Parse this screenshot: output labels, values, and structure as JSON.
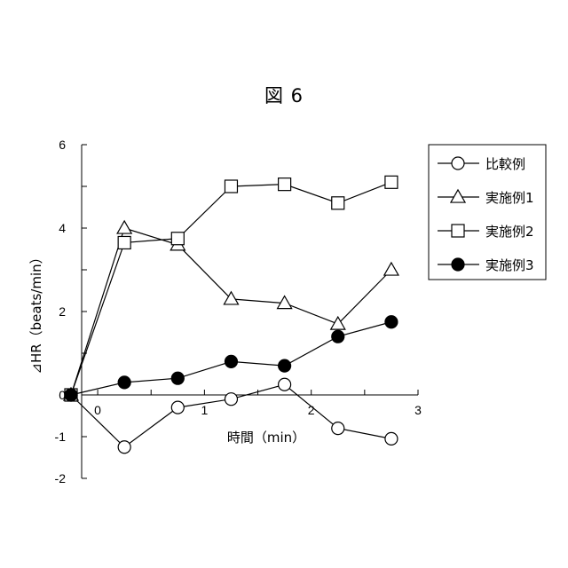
{
  "figure": {
    "title": "図 6"
  },
  "chart_data": {
    "type": "line",
    "xlabel": "時間（min）",
    "ylabel": "⊿HR（beats/min）",
    "xlim": [
      -0.25,
      3
    ],
    "ylim": [
      -2,
      6
    ],
    "x_ticks": [
      0,
      1,
      2,
      3
    ],
    "y_ticks": [
      -2,
      -1,
      0,
      2,
      4,
      6
    ],
    "y_minor_ticks": [
      1,
      3,
      5
    ],
    "x_minor_ticks": [
      0.5,
      1.5,
      2.5
    ],
    "x": [
      0,
      0.5,
      1,
      1.5,
      2,
      2.5,
      3
    ],
    "x_plot": [
      -0.25,
      0.25,
      0.75,
      1.25,
      1.75,
      2.25,
      2.75
    ],
    "grid": false,
    "legend_position": "top-right",
    "series": [
      {
        "name": "比較例",
        "marker": "circle-open",
        "values": [
          0,
          -1.25,
          -0.3,
          -0.1,
          0.25,
          -0.8,
          -1.05
        ]
      },
      {
        "name": "実施例1",
        "marker": "triangle-open",
        "values": [
          0,
          4.0,
          3.6,
          2.3,
          2.2,
          1.7,
          3.0
        ]
      },
      {
        "name": "実施例2",
        "marker": "square-open",
        "values": [
          0,
          3.65,
          3.75,
          5.0,
          5.05,
          4.6,
          5.1
        ]
      },
      {
        "name": "実施例3",
        "marker": "circle-filled",
        "values": [
          0,
          0.3,
          0.4,
          0.8,
          0.7,
          1.4,
          1.75
        ]
      }
    ]
  }
}
